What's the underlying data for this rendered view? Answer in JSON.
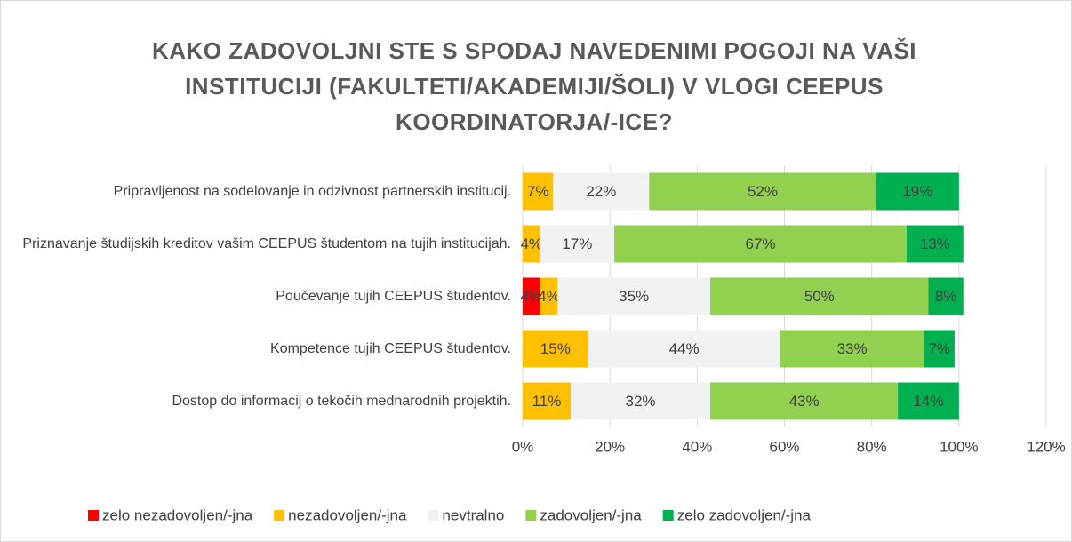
{
  "chart_data": {
    "type": "stacked-barh",
    "title": "KAKO ZADOVOLJNI STE S SPODAJ NAVEDENIMI POGOJI NA VAŠI INSTITUCIJI (FAKULTETI/AKADEMIJI/ŠOLI) V VLOGI CEEPUS KOORDINATORJA/-ICE?",
    "categories": [
      "Pripravljenost na sodelovanje in odzivnost partnerskih institucij.",
      "Priznavanje študijskih kreditov vašim CEEPUS študentom na tujih institucijah.",
      "Poučevanje tujih CEEPUS študentov.",
      "Kompetence tujih CEEPUS študentov.",
      "Dostop do informacij o tekočih mednarodnih projektih."
    ],
    "series": [
      {
        "name": "zelo nezadovoljen/-jna",
        "color": "#ff0000",
        "values": [
          0,
          0,
          4,
          0,
          0
        ],
        "value_labels": [
          null,
          null,
          "4%",
          null,
          null
        ]
      },
      {
        "name": "nezadovoljen/-jna",
        "color": "#ffc000",
        "values": [
          7,
          4,
          4,
          15,
          11
        ],
        "value_labels": [
          "7%",
          "4%",
          "4%",
          "15%",
          "11%"
        ]
      },
      {
        "name": "nevtralno",
        "color": "#f2f2f2",
        "values": [
          22,
          17,
          35,
          44,
          32
        ],
        "value_labels": [
          "22%",
          "17%",
          "35%",
          "44%",
          "32%"
        ]
      },
      {
        "name": "zadovoljen/-jna",
        "color": "#92d050",
        "values": [
          52,
          67,
          50,
          33,
          43
        ],
        "value_labels": [
          "52%",
          "67%",
          "50%",
          "33%",
          "43%"
        ]
      },
      {
        "name": "zelo zadovoljen/-jna",
        "color": "#00b050",
        "values": [
          19,
          13,
          8,
          7,
          14
        ],
        "value_labels": [
          "19%",
          "13%",
          "8%",
          "7%",
          "14%"
        ]
      }
    ],
    "xlim": [
      0,
      120
    ],
    "xticks": [
      {
        "value": 0,
        "label": "0%"
      },
      {
        "value": 20,
        "label": "20%"
      },
      {
        "value": 40,
        "label": "40%"
      },
      {
        "value": 60,
        "label": "60%"
      },
      {
        "value": 80,
        "label": "80%"
      },
      {
        "value": 100,
        "label": "100%"
      },
      {
        "value": 120,
        "label": "120%"
      }
    ],
    "grid": true,
    "legend": "bottom"
  }
}
